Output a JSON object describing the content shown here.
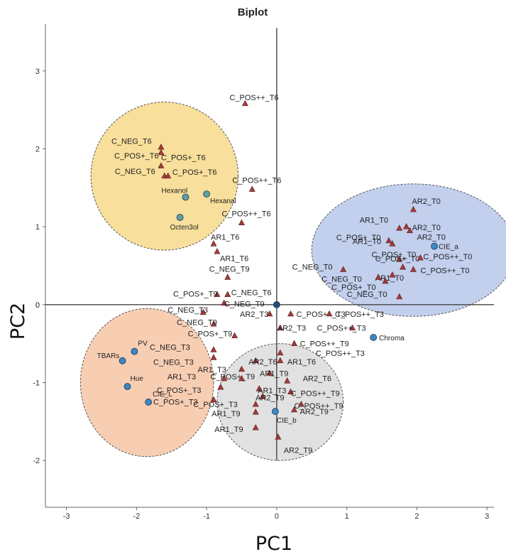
{
  "chart_data": {
    "type": "scatter",
    "title": "Biplot",
    "xlabel": "PC1",
    "ylabel": "PC2",
    "xlim": [
      -3.3,
      3.1
    ],
    "ylim": [
      -2.6,
      3.6
    ],
    "xticks": [
      "-3",
      "-2",
      "-1",
      "0",
      "1",
      "2",
      "3"
    ],
    "yticks": [
      "-2",
      "-1",
      "0",
      "1",
      "2",
      "3"
    ],
    "origin_label": "0",
    "colors": {
      "observation": "#a33b3b",
      "variable": "#3b88c4",
      "variable_yellow": "#5fa0a0",
      "zone_yellow": "#f7d98a",
      "zone_blue": "#b7c7ea",
      "zone_orange": "#f7c6a6",
      "zone_gray": "#dcdcdc"
    },
    "zones": [
      {
        "name": "yellow-zone",
        "color_key": "zone_yellow",
        "cx": -1.6,
        "cy": 1.65,
        "rx": 1.05,
        "ry": 0.95
      },
      {
        "name": "blue-zone",
        "color_key": "zone_blue",
        "cx": 1.95,
        "cy": 0.7,
        "rx": 1.45,
        "ry": 0.85
      },
      {
        "name": "orange-zone",
        "color_key": "zone_orange",
        "cx": -1.85,
        "cy": -1.0,
        "rx": 0.95,
        "ry": 0.95
      },
      {
        "name": "gray-zone",
        "color_key": "zone_gray",
        "cx": 0.05,
        "cy": -1.25,
        "rx": 0.9,
        "ry": 0.75
      }
    ],
    "observations": [
      {
        "label": "C_POS++_T6",
        "x": -0.45,
        "y": 2.58,
        "dx": -22,
        "dy": -5
      },
      {
        "label": "C_NEG_T6",
        "x": -1.65,
        "y": 2.02,
        "dx": -70,
        "dy": -5
      },
      {
        "label": "C_POS+_T6",
        "x": -1.65,
        "y": 1.95,
        "dx": -66,
        "dy": 8
      },
      {
        "label": "C_POS+_T6",
        "x": -1.65,
        "y": 1.78,
        "dx": 0,
        "dy": -8
      },
      {
        "label": "C_NEG_T6",
        "x": -1.6,
        "y": 1.65,
        "dx": -70,
        "dy": -3
      },
      {
        "label": "C_POS+_T6",
        "x": -1.55,
        "y": 1.65,
        "dx": 6,
        "dy": -2
      },
      {
        "label": "C_POS++_T6",
        "x": -0.35,
        "y": 1.48,
        "dx": -28,
        "dy": -9
      },
      {
        "label": "C_POS++_T6",
        "x": -0.5,
        "y": 1.05,
        "dx": -28,
        "dy": -9
      },
      {
        "label": "AR1_T6",
        "x": -0.9,
        "y": 0.78,
        "dx": -4,
        "dy": -6
      },
      {
        "label": "AR1_T6",
        "x": -0.85,
        "y": 0.68,
        "dx": 4,
        "dy": 13
      },
      {
        "label": "C_NEG_T9",
        "x": -0.7,
        "y": 0.35,
        "dx": -26,
        "dy": -8
      },
      {
        "label": "C_POS+_T9",
        "x": -0.85,
        "y": 0.13,
        "dx": -62,
        "dy": 3
      },
      {
        "label": "C_NEG_T6",
        "x": -0.7,
        "y": 0.13,
        "dx": 5,
        "dy": 1
      },
      {
        "label": "C_NEG_T9",
        "x": -0.75,
        "y": 0.02,
        "dx": 0,
        "dy": 5
      },
      {
        "label": "C_NEG_T3",
        "x": -1.05,
        "y": -0.1,
        "dx": -50,
        "dy": 0
      },
      {
        "label": "C_NEG_T9",
        "x": -0.9,
        "y": -0.25,
        "dx": -52,
        "dy": 1
      },
      {
        "label": "C_POS+_T9",
        "x": -0.6,
        "y": -0.4,
        "dx": -66,
        "dy": 1
      },
      {
        "label": "AR2_T3",
        "x": -0.1,
        "y": -0.12,
        "dx": -42,
        "dy": 4
      },
      {
        "label": "AR2_T3",
        "x": 0.05,
        "y": -0.3,
        "dx": -4,
        "dy": 4
      },
      {
        "label": "C_POS++_T3",
        "x": 0.2,
        "y": -0.12,
        "dx": 8,
        "dy": 4
      },
      {
        "label": "C_POS++_T3",
        "x": 0.75,
        "y": -0.12,
        "dx": 8,
        "dy": 4
      },
      {
        "label": "C_NEG_T3",
        "x": -0.9,
        "y": -0.58,
        "dx": -90,
        "dy": 0
      },
      {
        "label": "C_NEG_T3",
        "x": -0.9,
        "y": -0.68,
        "dx": -85,
        "dy": 10
      },
      {
        "label": "C_POS++_T9",
        "x": 0.25,
        "y": -0.5,
        "dx": 8,
        "dy": 4
      },
      {
        "label": "C_POS++_T3",
        "x": 0.05,
        "y": -0.62,
        "dx": 50,
        "dy": 4
      },
      {
        "label": "AR2_T6",
        "x": -0.3,
        "y": -0.72,
        "dx": -10,
        "dy": 5
      },
      {
        "label": "AR1_T6",
        "x": 0.05,
        "y": -0.72,
        "dx": 10,
        "dy": 5
      },
      {
        "label": "AR1_T3",
        "x": -0.5,
        "y": -0.83,
        "dx": -62,
        "dy": 4
      },
      {
        "label": "AR1_T9",
        "x": -0.1,
        "y": -0.88,
        "dx": -14,
        "dy": 4
      },
      {
        "label": "AR1_T3",
        "x": -0.75,
        "y": -0.95,
        "dx": -80,
        "dy": 1
      },
      {
        "label": "C_POS+_T9",
        "x": -0.5,
        "y": -0.95,
        "dx": -44,
        "dy": 1
      },
      {
        "label": "AR2_T6",
        "x": 0.15,
        "y": -0.98,
        "dx": 22,
        "dy": 0
      },
      {
        "label": "C_POS+_T3",
        "x": -0.8,
        "y": -1.06,
        "dx": -90,
        "dy": 8
      },
      {
        "label": "AR1_T3",
        "x": -0.25,
        "y": -1.08,
        "dx": -2,
        "dy": 6
      },
      {
        "label": "C_POS++_T9",
        "x": 0.2,
        "y": -1.12,
        "dx": 0,
        "dy": 6
      },
      {
        "label": "C_POS+_T3",
        "x": -0.9,
        "y": -1.22,
        "dx": -85,
        "dy": 7
      },
      {
        "label": "AR2_T9",
        "x": -0.2,
        "y": -1.18,
        "dx": -10,
        "dy": 5
      },
      {
        "label": "C_POS++_T9",
        "x": 0.35,
        "y": -1.28,
        "dx": -10,
        "dy": 6
      },
      {
        "label": "C_POS+_T3",
        "x": -0.3,
        "y": -1.28,
        "dx": -88,
        "dy": 4
      },
      {
        "label": "AR1_T9",
        "x": -0.3,
        "y": -1.38,
        "dx": -62,
        "dy": 6
      },
      {
        "label": "AR2_T9",
        "x": 0.25,
        "y": -1.35,
        "dx": 8,
        "dy": 6
      },
      {
        "label": "AR1_T9",
        "x": -0.3,
        "y": -1.58,
        "dx": -58,
        "dy": 6
      },
      {
        "label": "AR2_T9",
        "x": 0.02,
        "y": -1.7,
        "dx": 8,
        "dy": 22
      },
      {
        "label": "C_POS++_T3",
        "x": 1.08,
        "y": -0.3,
        "dx": -50,
        "dy": 4
      },
      {
        "label": "C_POS+_T0",
        "x": 1.6,
        "y": 0.82,
        "dx": -74,
        "dy": -1
      },
      {
        "label": "AR1_T0",
        "x": 1.75,
        "y": 0.98,
        "dx": -56,
        "dy": -8
      },
      {
        "label": "AR2_T0",
        "x": 1.85,
        "y": 1.0,
        "dx": 8,
        "dy": 5
      },
      {
        "label": "AR2_T0",
        "x": 1.95,
        "y": 1.22,
        "dx": -2,
        "dy": -8
      },
      {
        "label": "AR2_T0",
        "x": 1.9,
        "y": 0.95,
        "dx": 10,
        "dy": 13
      },
      {
        "label": "AR1_T0",
        "x": 1.65,
        "y": 0.78,
        "dx": -56,
        "dy": 0
      },
      {
        "label": "C_POS+_T0",
        "x": 1.75,
        "y": 0.58,
        "dx": -34,
        "dy": 3
      },
      {
        "label": "AR1_T0",
        "x": 1.65,
        "y": 0.38,
        "dx": -24,
        "dy": 8
      },
      {
        "label": "C_NEG_T0",
        "x": 0.95,
        "y": 0.45,
        "dx": -72,
        "dy": 0
      },
      {
        "label": "C_NEG_T0",
        "x": 1.45,
        "y": 0.35,
        "dx": -80,
        "dy": 6
      },
      {
        "label": "C_POS+_T0",
        "x": 1.55,
        "y": 0.3,
        "dx": -76,
        "dy": 12
      },
      {
        "label": "C_POS++_T0",
        "x": 2.05,
        "y": 0.6,
        "dx": 4,
        "dy": 2
      },
      {
        "label": "C_POS++_T0",
        "x": 1.95,
        "y": 0.45,
        "dx": 10,
        "dy": 5
      },
      {
        "label": "C_NEG_T0",
        "x": 1.75,
        "y": 0.1,
        "dx": -74,
        "dy": 0
      },
      {
        "label": "C_POS+_T0",
        "x": 1.8,
        "y": 0.48,
        "dx": -44,
        "dy": -14
      }
    ],
    "variables": [
      {
        "label": "Hexanol",
        "x": -1.3,
        "y": 1.38,
        "dx": -34,
        "dy": -6,
        "color_key": "variable_yellow"
      },
      {
        "label": "Hexanal",
        "x": -1.0,
        "y": 1.42,
        "dx": 5,
        "dy": 13,
        "color_key": "variable_yellow"
      },
      {
        "label": "Octen3ol",
        "x": -1.38,
        "y": 1.12,
        "dx": -14,
        "dy": 17,
        "color_key": "variable_yellow"
      },
      {
        "label": "CIE_a",
        "x": 2.25,
        "y": 0.75,
        "dx": 6,
        "dy": 4,
        "color_key": "variable"
      },
      {
        "label": "Chroma",
        "x": 1.38,
        "y": -0.42,
        "dx": 8,
        "dy": 4,
        "color_key": "variable"
      },
      {
        "label": "CIE_b",
        "x": -0.02,
        "y": -1.37,
        "dx": 2,
        "dy": 16,
        "color_key": "variable"
      },
      {
        "label": "PV",
        "x": -2.03,
        "y": -0.6,
        "dx": 5,
        "dy": -8,
        "color_key": "variable"
      },
      {
        "label": "TBARs",
        "x": -2.2,
        "y": -0.72,
        "dx": -36,
        "dy": -4,
        "color_key": "variable"
      },
      {
        "label": "Hue",
        "x": -2.13,
        "y": -1.05,
        "dx": 4,
        "dy": -8,
        "color_key": "variable"
      },
      {
        "label": "CIE_L",
        "x": -1.83,
        "y": -1.25,
        "dx": 6,
        "dy": -8,
        "color_key": "variable"
      },
      {
        "label": "origin",
        "x": 0.0,
        "y": 0.0,
        "dx": 0,
        "dy": 0,
        "color_key": "variable",
        "hide_label": true
      }
    ]
  }
}
